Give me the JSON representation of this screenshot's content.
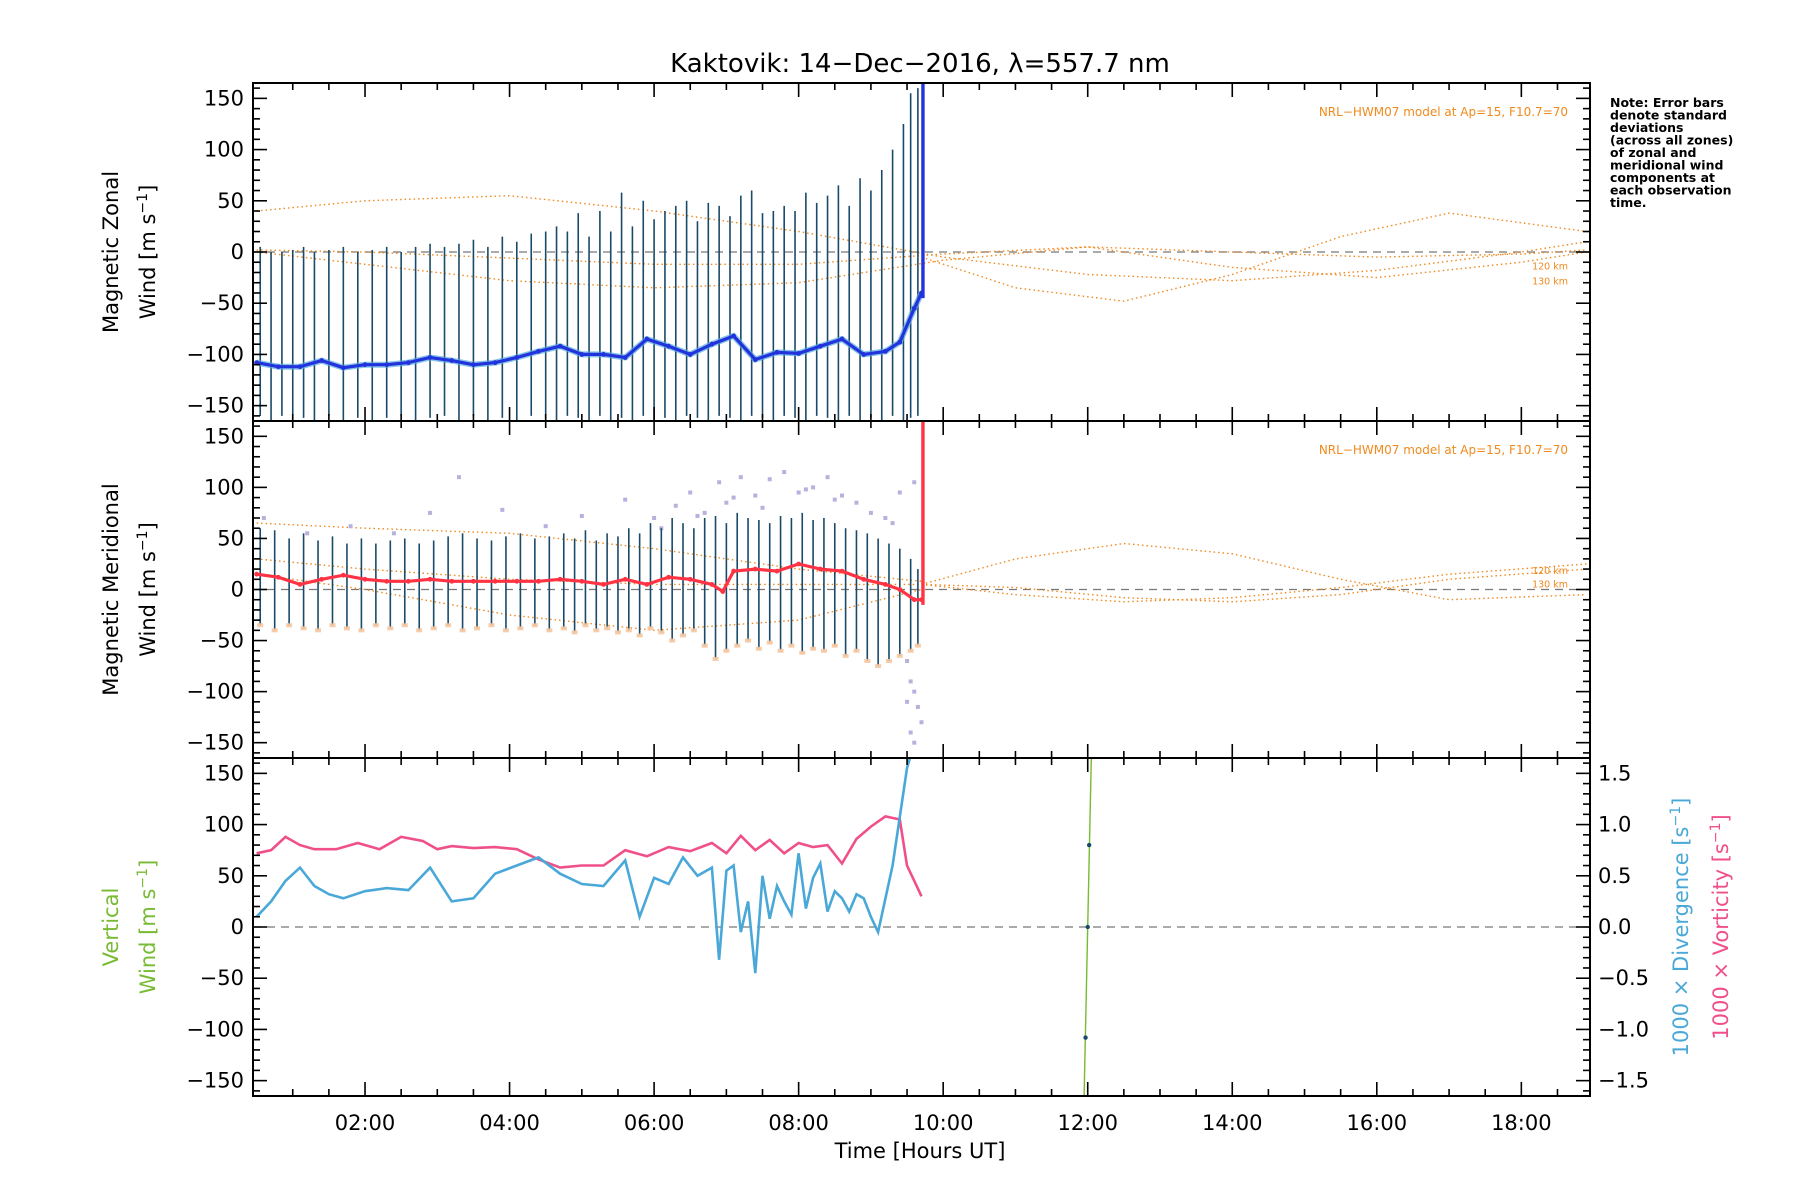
{
  "title": "Kaktovik: 14−Dec−2016, λ=557.7 nm",
  "note_lines": [
    "Note: Error bars",
    "denote standard",
    "deviations",
    "(across all zones)",
    "of zonal and",
    "meridional wind",
    "components at",
    "each observation",
    "time."
  ],
  "colors": {
    "zonal": "#2233dd",
    "zonal_light": "#55aadd",
    "meridional": "#ff3344",
    "model": "#f08a1f",
    "errorbar": "#1a4a6a",
    "scatter_zonal": "#f5c7a0",
    "scatter_meridional": "#b8b0dd",
    "vertical": "#77bb33",
    "divergence": "#4aa8d8",
    "vorticity": "#f0508a",
    "zero_line": "#777777"
  },
  "chart_data": [
    {
      "type": "line",
      "name_panel": "zonal",
      "ylabel_line1": "Magnetic Zonal",
      "ylabel_line2": "Wind [m s",
      "ylabel_sup": "−1",
      "ylabel_end": "]",
      "ylim": [
        -165,
        165
      ],
      "yticks": [
        -150,
        -100,
        -50,
        0,
        50,
        100,
        150
      ],
      "ytick_labels": [
        "−150",
        "−100",
        "−50",
        "0",
        "50",
        "100",
        "150"
      ],
      "model_label": "NRL−HWM07 model at Ap=15, F10.7=70",
      "altitude_labels": [
        {
          "text": "120 km",
          "y": -14
        },
        {
          "text": "130 km",
          "y": -29
        }
      ],
      "model_curves": [
        {
          "x": [
            0.5,
            2,
            4,
            6,
            8,
            10,
            12,
            14,
            16,
            18,
            18.9
          ],
          "y": [
            40,
            50,
            55,
            40,
            20,
            -5,
            -22,
            -28,
            -18,
            0,
            10
          ]
        },
        {
          "x": [
            0.5,
            2,
            4,
            6,
            8,
            10,
            12,
            14,
            16,
            18,
            18.9
          ],
          "y": [
            2,
            0,
            -6,
            -12,
            -12,
            -2,
            5,
            0,
            -5,
            -2,
            2
          ]
        },
        {
          "x": [
            0.5,
            2,
            4,
            6,
            8,
            10,
            12,
            14,
            16,
            18,
            18.9
          ],
          "y": [
            0,
            -12,
            -28,
            -35,
            -30,
            -8,
            5,
            -15,
            -25,
            -10,
            0
          ]
        },
        {
          "x": [
            9.7,
            11,
            12.5,
            14,
            15.5,
            17,
            18.9
          ],
          "y": [
            -5,
            -35,
            -48,
            -22,
            15,
            38,
            20
          ]
        }
      ],
      "series_x": [
        0.5,
        0.8,
        1.1,
        1.4,
        1.7,
        2.0,
        2.3,
        2.6,
        2.9,
        3.2,
        3.5,
        3.8,
        4.1,
        4.4,
        4.7,
        5.0,
        5.3,
        5.6,
        5.9,
        6.2,
        6.5,
        6.8,
        7.1,
        7.4,
        7.7,
        8.0,
        8.3,
        8.6,
        8.9,
        9.2,
        9.4,
        9.6,
        9.7
      ],
      "series_y": [
        -108,
        -112,
        -112,
        -106,
        -113,
        -110,
        -110,
        -108,
        -103,
        -106,
        -110,
        -108,
        -103,
        -97,
        -92,
        -100,
        -100,
        -103,
        -85,
        -92,
        -100,
        -90,
        -82,
        -105,
        -98,
        -99,
        -92,
        -85,
        -100,
        -97,
        -88,
        -55,
        -40
      ],
      "errorbar_x": [
        0.45,
        0.55,
        0.7,
        0.85,
        1.0,
        1.15,
        1.3,
        1.5,
        1.7,
        1.9,
        2.1,
        2.3,
        2.5,
        2.7,
        2.9,
        3.1,
        3.3,
        3.5,
        3.7,
        3.9,
        4.1,
        4.3,
        4.5,
        4.65,
        4.8,
        4.95,
        5.1,
        5.25,
        5.4,
        5.55,
        5.7,
        5.85,
        6.0,
        6.15,
        6.3,
        6.45,
        6.6,
        6.75,
        6.9,
        7.05,
        7.2,
        7.35,
        7.5,
        7.65,
        7.8,
        7.95,
        8.1,
        8.25,
        8.4,
        8.55,
        8.7,
        8.85,
        9.0,
        9.15,
        9.3,
        9.45,
        9.55,
        9.65
      ],
      "errorbar_top": [
        2,
        5,
        0,
        0,
        2,
        5,
        0,
        2,
        5,
        0,
        2,
        5,
        0,
        5,
        8,
        5,
        8,
        12,
        5,
        15,
        10,
        18,
        20,
        25,
        20,
        38,
        15,
        40,
        20,
        58,
        25,
        50,
        32,
        40,
        45,
        50,
        30,
        48,
        45,
        35,
        55,
        60,
        38,
        40,
        45,
        40,
        58,
        48,
        55,
        65,
        45,
        72,
        60,
        80,
        100,
        125,
        155,
        160
      ],
      "errorbar_bottom": [
        -165,
        -160,
        -165,
        -160,
        -165,
        -162,
        -165,
        -160,
        -165,
        -162,
        -165,
        -162,
        -160,
        -165,
        -162,
        -160,
        -165,
        -160,
        -165,
        -162,
        -165,
        -160,
        -162,
        -165,
        -160,
        -162,
        -165,
        -160,
        -165,
        -162,
        -165,
        -160,
        -165,
        -162,
        -165,
        -160,
        -162,
        -165,
        -160,
        -162,
        -165,
        -160,
        -162,
        -165,
        -160,
        -162,
        -165,
        -160,
        -162,
        -165,
        -160,
        -165,
        -162,
        -165,
        -160,
        -165,
        -162,
        -160
      ],
      "spike": {
        "x": 9.72,
        "y_from": -45,
        "y_to": 165
      }
    },
    {
      "type": "line",
      "name_panel": "meridional",
      "ylabel_line1": "Magnetic Meridional",
      "ylabel_line2": "Wind [m s",
      "ylabel_sup": "−1",
      "ylabel_end": "]",
      "ylim": [
        -165,
        165
      ],
      "yticks": [
        -150,
        -100,
        -50,
        0,
        50,
        100,
        150
      ],
      "ytick_labels": [
        "−150",
        "−100",
        "−50",
        "0",
        "50",
        "100",
        "150"
      ],
      "model_label": "NRL−HWM07 model at Ap=15, F10.7=70",
      "altitude_labels": [
        {
          "text": "120 km",
          "y": 18
        },
        {
          "text": "130 km",
          "y": 5
        }
      ],
      "model_curves": [
        {
          "x": [
            0.5,
            2,
            4,
            6,
            8,
            9.7
          ],
          "y": [
            65,
            60,
            55,
            40,
            20,
            8
          ]
        },
        {
          "x": [
            0.5,
            2,
            4,
            6,
            8,
            9.7
          ],
          "y": [
            30,
            20,
            10,
            5,
            5,
            5
          ]
        },
        {
          "x": [
            0.5,
            2,
            4,
            6,
            8,
            9.7
          ],
          "y": [
            15,
            0,
            -25,
            -40,
            -30,
            0
          ]
        },
        {
          "x": [
            9.7,
            11,
            12.5,
            14,
            15.5,
            17,
            18.9
          ],
          "y": [
            5,
            30,
            45,
            35,
            10,
            -10,
            -5
          ]
        },
        {
          "x": [
            9.7,
            11,
            12.5,
            14,
            15.5,
            17,
            18.9
          ],
          "y": [
            5,
            2,
            -8,
            -12,
            -5,
            10,
            20
          ]
        },
        {
          "x": [
            9.7,
            11,
            12.5,
            14,
            15.5,
            17,
            18.9
          ],
          "y": [
            5,
            -5,
            -12,
            -8,
            2,
            15,
            25
          ]
        }
      ],
      "series_x": [
        0.5,
        0.8,
        1.1,
        1.4,
        1.7,
        2.0,
        2.3,
        2.6,
        2.9,
        3.2,
        3.5,
        3.8,
        4.1,
        4.4,
        4.7,
        5.0,
        5.3,
        5.6,
        5.9,
        6.2,
        6.5,
        6.8,
        6.95,
        7.1,
        7.4,
        7.7,
        8.0,
        8.3,
        8.6,
        8.9,
        9.2,
        9.4,
        9.6,
        9.7
      ],
      "series_y": [
        15,
        12,
        5,
        10,
        14,
        10,
        8,
        8,
        10,
        8,
        8,
        8,
        8,
        8,
        10,
        8,
        5,
        10,
        5,
        12,
        10,
        5,
        -2,
        18,
        20,
        18,
        25,
        20,
        18,
        10,
        5,
        0,
        -10,
        -10
      ],
      "errorbar_x": [
        0.55,
        0.75,
        0.95,
        1.15,
        1.35,
        1.55,
        1.75,
        1.95,
        2.15,
        2.35,
        2.55,
        2.75,
        2.95,
        3.15,
        3.35,
        3.55,
        3.75,
        3.95,
        4.15,
        4.35,
        4.55,
        4.75,
        4.9,
        5.05,
        5.2,
        5.35,
        5.5,
        5.65,
        5.8,
        5.95,
        6.1,
        6.25,
        6.4,
        6.55,
        6.7,
        6.85,
        7.0,
        7.15,
        7.3,
        7.45,
        7.6,
        7.75,
        7.9,
        8.05,
        8.2,
        8.35,
        8.5,
        8.65,
        8.8,
        8.95,
        9.1,
        9.25,
        9.4,
        9.55,
        9.65
      ],
      "errorbar_top": [
        60,
        58,
        50,
        55,
        48,
        52,
        45,
        50,
        45,
        48,
        50,
        45,
        48,
        52,
        55,
        50,
        48,
        52,
        55,
        50,
        52,
        55,
        50,
        58,
        48,
        55,
        52,
        60,
        55,
        65,
        60,
        70,
        65,
        60,
        70,
        72,
        65,
        75,
        70,
        68,
        65,
        72,
        70,
        75,
        68,
        70,
        65,
        60,
        58,
        55,
        50,
        45,
        40,
        30,
        20
      ],
      "errorbar_bottom": [
        -35,
        -40,
        -35,
        -38,
        -40,
        -35,
        -38,
        -40,
        -35,
        -38,
        -35,
        -40,
        -38,
        -35,
        -40,
        -38,
        -35,
        -40,
        -38,
        -35,
        -40,
        -38,
        -42,
        -35,
        -40,
        -38,
        -42,
        -40,
        -45,
        -38,
        -42,
        -50,
        -45,
        -40,
        -55,
        -68,
        -60,
        -55,
        -50,
        -58,
        -52,
        -60,
        -55,
        -62,
        -58,
        -60,
        -55,
        -65,
        -60,
        -70,
        -75,
        -70,
        -65,
        -60,
        -55
      ],
      "scatter_top_x": [
        0.6,
        1.2,
        1.8,
        2.4,
        2.9,
        3.3,
        3.9,
        4.5,
        5.0,
        5.6,
        6.0,
        6.3,
        6.5,
        6.7,
        6.9,
        7.0,
        7.2,
        7.4,
        7.6,
        7.8,
        8.0,
        8.2,
        8.4,
        8.6,
        8.8,
        9.0,
        9.2,
        9.4,
        9.6,
        6.1,
        6.6,
        7.1,
        7.5,
        8.1,
        8.5,
        9.3
      ],
      "scatter_top_y": [
        70,
        55,
        62,
        55,
        75,
        110,
        78,
        62,
        72,
        88,
        70,
        82,
        95,
        75,
        105,
        85,
        110,
        92,
        108,
        115,
        95,
        100,
        110,
        92,
        85,
        75,
        70,
        95,
        105,
        60,
        72,
        90,
        80,
        98,
        88,
        65
      ],
      "scatter_bottom_x": [
        9.5,
        9.55,
        9.6,
        9.65,
        9.7,
        9.6,
        9.5,
        9.55
      ],
      "scatter_bottom_y": [
        -70,
        -90,
        -100,
        -115,
        -130,
        -150,
        -110,
        -140
      ],
      "spike": {
        "x": 9.72,
        "y_from": -15,
        "y_to": 165
      }
    },
    {
      "type": "line",
      "name_panel": "vertical",
      "ylabel_line1": "Vertical",
      "ylabel_line2": "Wind [m s",
      "ylabel_sup": "−1",
      "ylabel_end": "]",
      "ylim": [
        -165,
        165
      ],
      "yticks": [
        -150,
        -100,
        -50,
        0,
        50,
        100,
        150
      ],
      "ytick_labels": [
        "−150",
        "−100",
        "−50",
        "0",
        "50",
        "100",
        "150"
      ],
      "y2lim": [
        -1.65,
        1.65
      ],
      "y2ticks": [
        -1.5,
        -1.0,
        -0.5,
        0.0,
        0.5,
        1.0,
        1.5
      ],
      "y2tick_labels": [
        "−1.5",
        "−1.0",
        "−0.5",
        "0.0",
        "0.5",
        "1.0",
        "1.5"
      ],
      "y2label_div": "1000 × Divergence [s",
      "y2label_vor": "1000 × Vorticity [s",
      "y2label_sup": "−1",
      "y2label_end": "]",
      "vorticity_x": [
        0.5,
        0.7,
        0.9,
        1.1,
        1.3,
        1.6,
        1.9,
        2.2,
        2.5,
        2.8,
        3.0,
        3.2,
        3.5,
        3.8,
        4.1,
        4.4,
        4.7,
        5.0,
        5.3,
        5.6,
        5.9,
        6.2,
        6.5,
        6.8,
        7.0,
        7.2,
        7.4,
        7.6,
        7.8,
        8.0,
        8.2,
        8.4,
        8.6,
        8.8,
        9.0,
        9.2,
        9.4,
        9.5,
        9.6,
        9.7
      ],
      "vorticity_y": [
        0.72,
        0.75,
        0.88,
        0.8,
        0.76,
        0.76,
        0.82,
        0.76,
        0.88,
        0.84,
        0.76,
        0.79,
        0.77,
        0.78,
        0.76,
        0.66,
        0.58,
        0.6,
        0.6,
        0.75,
        0.69,
        0.78,
        0.74,
        0.82,
        0.72,
        0.89,
        0.75,
        0.85,
        0.72,
        0.82,
        0.78,
        0.8,
        0.62,
        0.86,
        0.98,
        1.08,
        1.05,
        0.6,
        0.45,
        0.3
      ],
      "divergence_x": [
        0.5,
        0.7,
        0.9,
        1.1,
        1.3,
        1.5,
        1.7,
        2.0,
        2.3,
        2.6,
        2.9,
        3.2,
        3.5,
        3.8,
        4.1,
        4.4,
        4.7,
        5.0,
        5.3,
        5.6,
        5.8,
        6.0,
        6.2,
        6.4,
        6.6,
        6.8,
        6.9,
        7.0,
        7.1,
        7.2,
        7.3,
        7.4,
        7.5,
        7.6,
        7.7,
        7.8,
        7.9,
        8.0,
        8.1,
        8.2,
        8.3,
        8.4,
        8.5,
        8.6,
        8.7,
        8.8,
        8.9,
        9.0,
        9.1,
        9.3,
        9.5,
        9.6
      ],
      "divergence_y": [
        0.1,
        0.25,
        0.45,
        0.58,
        0.4,
        0.32,
        0.28,
        0.35,
        0.38,
        0.36,
        0.58,
        0.25,
        0.28,
        0.52,
        0.6,
        0.68,
        0.52,
        0.42,
        0.4,
        0.65,
        0.1,
        0.48,
        0.42,
        0.68,
        0.5,
        0.58,
        -0.32,
        0.55,
        0.6,
        -0.05,
        0.25,
        -0.45,
        0.5,
        0.08,
        0.4,
        0.25,
        0.12,
        0.72,
        0.18,
        0.48,
        0.62,
        0.15,
        0.35,
        0.28,
        0.15,
        0.32,
        0.28,
        0.1,
        -0.05,
        0.6,
        1.55,
        1.8
      ],
      "vertical_x": [
        11.95,
        12.05
      ],
      "vertical_y": [
        -165,
        165
      ],
      "vertical_points": [
        {
          "x": 12.02,
          "y": 80
        },
        {
          "x": 12.0,
          "y": 0
        },
        {
          "x": 11.97,
          "y": -108
        }
      ]
    }
  ],
  "xaxis": {
    "label": "Time [Hours UT]",
    "xlim": [
      0.45,
      18.95
    ],
    "ticks": [
      2,
      4,
      6,
      8,
      10,
      12,
      14,
      16,
      18
    ],
    "tick_labels": [
      "02:00",
      "04:00",
      "06:00",
      "08:00",
      "10:00",
      "12:00",
      "14:00",
      "16:00",
      "18:00"
    ]
  }
}
